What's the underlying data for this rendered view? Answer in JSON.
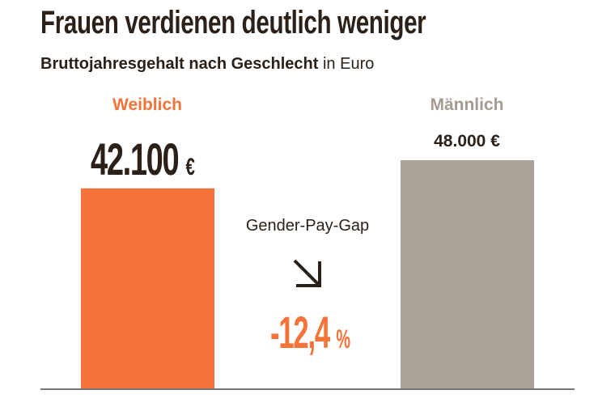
{
  "chart_data": {
    "type": "bar",
    "title": "Frauen verdienen deutlich weniger",
    "subtitle_bold": "Bruttojahresgehalt nach Geschlecht",
    "subtitle_unit": "in Euro",
    "categories": [
      "Weiblich",
      "Männlich"
    ],
    "values": [
      42100,
      48000
    ],
    "value_labels": [
      "42.100",
      "48.000 €"
    ],
    "value_unit": "€",
    "colors": [
      "#f47339",
      "#aca196"
    ],
    "label_colors": [
      "#f47339",
      "#a59c91"
    ],
    "ylim": [
      0,
      48000
    ],
    "grid": false,
    "annotation": {
      "label": "Gender-Pay-Gap",
      "icon": "arrow-down-right-icon",
      "value": "-12,4",
      "unit": "%"
    }
  }
}
